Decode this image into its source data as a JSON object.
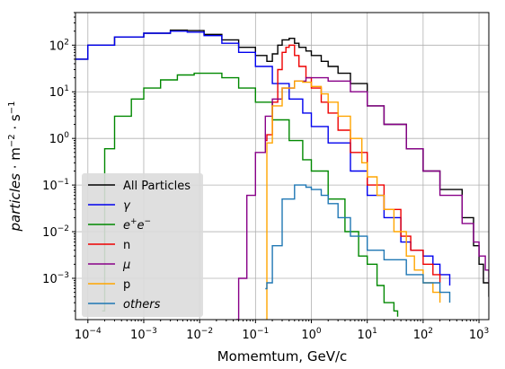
{
  "chart_data": {
    "type": "line",
    "drawstyle": "steps",
    "xlabel": "Momemtum, GeV/c",
    "ylabel_html": "<tspan font-style=\"italic\">particles</tspan> · m<tspan dy=\"-6\" font-size=\"10\">−2</tspan><tspan dy=\"6\"> · s</tspan><tspan dy=\"-6\" font-size=\"10\">−1</tspan>",
    "xscale": "log",
    "yscale": "log",
    "xlim": [
      6e-05,
      1500
    ],
    "ylim": [
      0.00013,
      500
    ],
    "x_ticks": [
      {
        "value": 0.0001,
        "base": "10",
        "exp": "−4"
      },
      {
        "value": 0.001,
        "base": "10",
        "exp": "−3"
      },
      {
        "value": 0.01,
        "base": "10",
        "exp": "−2"
      },
      {
        "value": 0.1,
        "base": "10",
        "exp": "−1"
      },
      {
        "value": 1,
        "base": "10",
        "exp": "0"
      },
      {
        "value": 10,
        "base": "10",
        "exp": "1"
      },
      {
        "value": 100,
        "base": "10",
        "exp": "2"
      },
      {
        "value": 1000,
        "base": "10",
        "exp": "3"
      }
    ],
    "y_ticks": [
      {
        "value": 0.001,
        "base": "10",
        "exp": "−3"
      },
      {
        "value": 0.01,
        "base": "10",
        "exp": "−2"
      },
      {
        "value": 0.1,
        "base": "10",
        "exp": "−1"
      },
      {
        "value": 1,
        "base": "10",
        "exp": "0"
      },
      {
        "value": 10,
        "base": "10",
        "exp": "1"
      },
      {
        "value": 100,
        "base": "10",
        "exp": "2"
      }
    ],
    "grid": true,
    "legend_position": "lower-left",
    "series": [
      {
        "name": "All Particles",
        "color": "#000000",
        "x": [
          6e-05,
          0.0001,
          0.0003,
          0.001,
          0.003,
          0.006,
          0.012,
          0.025,
          0.05,
          0.1,
          0.16,
          0.2,
          0.25,
          0.3,
          0.4,
          0.5,
          0.6,
          0.8,
          1,
          1.5,
          2,
          3,
          5,
          10,
          20,
          50,
          100,
          200,
          500,
          800,
          1000,
          1200,
          1500
        ],
        "y": [
          50,
          100,
          150,
          180,
          210,
          205,
          170,
          130,
          90,
          60,
          45,
          65,
          100,
          130,
          140,
          110,
          90,
          75,
          60,
          45,
          35,
          25,
          15,
          5,
          2,
          0.6,
          0.2,
          0.08,
          0.02,
          0.005,
          0.002,
          0.0008,
          0.0004
        ]
      },
      {
        "name": "γ",
        "name_italic": true,
        "color": "#0000ee",
        "x": [
          6e-05,
          0.0001,
          0.0003,
          0.001,
          0.003,
          0.006,
          0.012,
          0.025,
          0.05,
          0.1,
          0.2,
          0.4,
          0.7,
          1,
          2,
          5,
          10,
          20,
          40,
          60,
          100,
          150,
          200,
          300
        ],
        "y": [
          50,
          100,
          150,
          180,
          200,
          190,
          160,
          110,
          70,
          35,
          15,
          7,
          3.5,
          1.8,
          0.8,
          0.2,
          0.06,
          0.02,
          0.006,
          0.004,
          0.003,
          0.002,
          0.0012,
          0.0007
        ]
      },
      {
        "name": "e⁺e⁻",
        "color": "#008800",
        "x": [
          0.00018,
          0.0002,
          0.0003,
          0.0006,
          0.001,
          0.002,
          0.004,
          0.008,
          0.015,
          0.025,
          0.05,
          0.1,
          0.2,
          0.4,
          0.7,
          1,
          2,
          4,
          7,
          10,
          15,
          20,
          30,
          35
        ],
        "y": [
          0.0002,
          0.6,
          3,
          7,
          12,
          18,
          23,
          25,
          25,
          20,
          12,
          6,
          2.5,
          0.9,
          0.35,
          0.2,
          0.05,
          0.01,
          0.003,
          0.002,
          0.0007,
          0.0003,
          0.0002,
          0.00015
        ]
      },
      {
        "name": "n",
        "color": "#ee0000",
        "x": [
          0.15,
          0.16,
          0.2,
          0.25,
          0.3,
          0.35,
          0.4,
          0.5,
          0.6,
          0.8,
          1,
          1.5,
          2,
          3,
          5,
          10,
          20,
          40,
          60,
          100,
          150,
          200
        ],
        "y": [
          0.9,
          1.2,
          6,
          30,
          70,
          90,
          100,
          60,
          35,
          20,
          12,
          6,
          3.5,
          1.5,
          0.5,
          0.1,
          0.03,
          0.008,
          0.004,
          0.002,
          0.0012,
          0.0008
        ]
      },
      {
        "name": "μ",
        "name_italic": true,
        "color": "#880088",
        "x": [
          0.045,
          0.05,
          0.07,
          0.1,
          0.15,
          0.2,
          0.3,
          0.5,
          0.8,
          1,
          2,
          5,
          10,
          20,
          50,
          100,
          200,
          500,
          800,
          1000,
          1300,
          1500
        ],
        "y": [
          0.00013,
          0.001,
          0.06,
          0.5,
          3,
          7,
          12,
          17,
          20,
          20,
          17,
          10,
          5,
          2,
          0.6,
          0.2,
          0.06,
          0.015,
          0.006,
          0.003,
          0.0015,
          0.0008
        ]
      },
      {
        "name": "p",
        "color": "#ffa500",
        "x": [
          0.155,
          0.16,
          0.2,
          0.3,
          0.5,
          0.7,
          1,
          1.5,
          2,
          3,
          5,
          8,
          10,
          15,
          20,
          30,
          50,
          70,
          100,
          150,
          200
        ],
        "y": [
          0.00013,
          0.8,
          5,
          12,
          17,
          16,
          13,
          9,
          6,
          3,
          1,
          0.3,
          0.15,
          0.06,
          0.03,
          0.01,
          0.003,
          0.0015,
          0.0008,
          0.0005,
          0.0003
        ]
      },
      {
        "name": "others",
        "name_italic": true,
        "color": "#1f77b4",
        "x": [
          0.15,
          0.16,
          0.2,
          0.3,
          0.5,
          0.8,
          1,
          1.5,
          2,
          3,
          5,
          10,
          20,
          50,
          100,
          200,
          300
        ],
        "y": [
          0.0006,
          0.0008,
          0.005,
          0.05,
          0.1,
          0.09,
          0.08,
          0.06,
          0.04,
          0.02,
          0.008,
          0.004,
          0.0025,
          0.0012,
          0.0008,
          0.0005,
          0.0003
        ]
      }
    ]
  }
}
